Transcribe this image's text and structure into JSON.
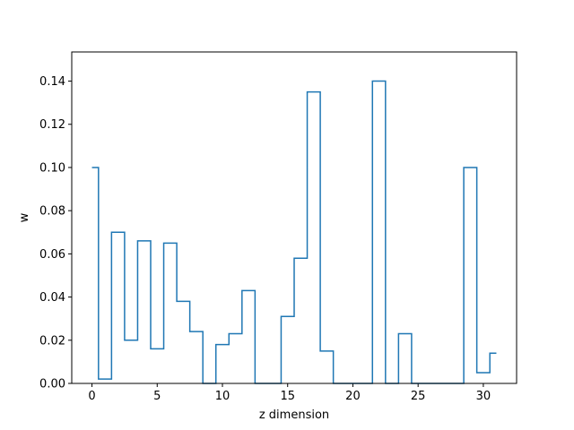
{
  "chart_data": {
    "type": "line",
    "style": "step",
    "xlabel": "z dimension",
    "ylabel": "w",
    "xlim": [
      -1.55,
      32.55
    ],
    "ylim": [
      0,
      0.1535
    ],
    "xticks": [
      0,
      5,
      10,
      15,
      20,
      25,
      30
    ],
    "yticks": [
      0.0,
      0.02,
      0.04,
      0.06,
      0.08,
      0.1,
      0.12,
      0.14
    ],
    "ytick_labels": [
      "0.00",
      "0.02",
      "0.04",
      "0.06",
      "0.08",
      "0.10",
      "0.12",
      "0.14"
    ],
    "grid": false,
    "line_color": "#1f77b4",
    "series": [
      {
        "x": [
          0,
          1,
          2,
          3,
          4,
          5,
          6,
          7,
          8,
          9,
          10,
          11,
          12,
          13,
          14,
          15,
          16,
          17,
          18,
          19,
          20,
          21,
          22,
          23,
          24,
          25,
          26,
          27,
          28,
          29,
          30,
          31
        ],
        "values": [
          0.1,
          0.002,
          0.07,
          0.02,
          0.066,
          0.016,
          0.065,
          0.038,
          0.024,
          0.0,
          0.018,
          0.023,
          0.043,
          0.0,
          0.0,
          0.031,
          0.058,
          0.135,
          0.015,
          0.0,
          0.0,
          0.0,
          0.14,
          0.0,
          0.023,
          0.0,
          0.0,
          0.0,
          0.0,
          0.1,
          0.005,
          0.014
        ]
      }
    ]
  }
}
